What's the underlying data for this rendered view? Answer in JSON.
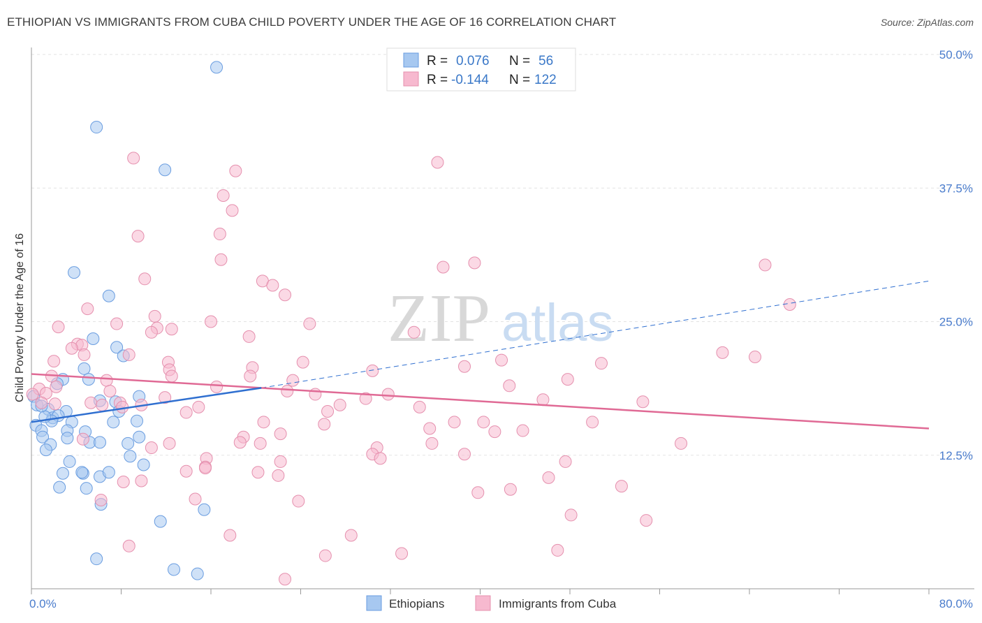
{
  "title": "ETHIOPIAN VS IMMIGRANTS FROM CUBA CHILD POVERTY UNDER THE AGE OF 16 CORRELATION CHART",
  "source": "Source: ZipAtlas.com",
  "watermark": {
    "zip": "ZIP",
    "atlas": "atlas"
  },
  "chart_data": {
    "type": "scatter",
    "xlabel": "",
    "ylabel": "Child Poverty Under the Age of 16",
    "xlim": [
      0,
      80
    ],
    "ylim": [
      0,
      50
    ],
    "x_tick_labels": [
      {
        "value": 0,
        "label": "0.0%"
      },
      {
        "value": 80,
        "label": "80.0%"
      }
    ],
    "y_tick_labels": [
      {
        "value": 12.5,
        "label": "12.5%"
      },
      {
        "value": 25,
        "label": "25.0%"
      },
      {
        "value": 37.5,
        "label": "37.5%"
      },
      {
        "value": 50,
        "label": "50.0%"
      }
    ],
    "legend_stats": [
      {
        "r_label": "R =",
        "r": "0.076",
        "n_label": "N =",
        "n": "56",
        "color": "#a7c8f0",
        "stroke": "#6a9de0"
      },
      {
        "r_label": "R =",
        "r": "-0.144",
        "n_label": "N =",
        "n": "122",
        "color": "#f7b9cf",
        "stroke": "#e590ae"
      }
    ],
    "series": [
      {
        "name": "Ethiopians",
        "color": "#a7c8f0",
        "stroke": "#6a9de0",
        "trend": {
          "x0": 0,
          "y0": 15.6,
          "x1": 20.5,
          "y1": 18.8,
          "dash_x1": 80,
          "dash_y1": 28.8,
          "color": "#2f6fd0"
        },
        "points": [
          [
            16.5,
            48.8
          ],
          [
            5.8,
            43.2
          ],
          [
            11.9,
            39.2
          ],
          [
            3.8,
            29.6
          ],
          [
            6.9,
            27.4
          ],
          [
            7.6,
            22.6
          ],
          [
            8.2,
            21.8
          ],
          [
            5.5,
            23.4
          ],
          [
            4.7,
            20.6
          ],
          [
            5.1,
            19.6
          ],
          [
            2.8,
            19.6
          ],
          [
            2.3,
            19.2
          ],
          [
            0.2,
            18.0
          ],
          [
            0.5,
            17.2
          ],
          [
            9.6,
            18.0
          ],
          [
            1.5,
            16.8
          ],
          [
            3.1,
            16.6
          ],
          [
            6.1,
            17.6
          ],
          [
            7.5,
            17.5
          ],
          [
            7.8,
            16.6
          ],
          [
            1.9,
            16.0
          ],
          [
            2.4,
            16.2
          ],
          [
            3.6,
            15.6
          ],
          [
            1.8,
            15.7
          ],
          [
            0.4,
            15.3
          ],
          [
            0.9,
            14.8
          ],
          [
            7.3,
            15.6
          ],
          [
            9.4,
            15.7
          ],
          [
            3.2,
            14.8
          ],
          [
            1.0,
            14.2
          ],
          [
            4.8,
            14.7
          ],
          [
            3.2,
            14.1
          ],
          [
            1.7,
            13.5
          ],
          [
            5.2,
            13.7
          ],
          [
            6.1,
            13.7
          ],
          [
            1.3,
            13.0
          ],
          [
            8.6,
            13.6
          ],
          [
            9.6,
            14.2
          ],
          [
            8.8,
            12.4
          ],
          [
            10.0,
            11.6
          ],
          [
            3.4,
            11.9
          ],
          [
            2.8,
            10.8
          ],
          [
            4.6,
            10.8
          ],
          [
            4.5,
            10.9
          ],
          [
            6.1,
            10.5
          ],
          [
            6.9,
            10.9
          ],
          [
            2.5,
            9.5
          ],
          [
            4.9,
            9.4
          ],
          [
            6.2,
            7.9
          ],
          [
            11.5,
            6.3
          ],
          [
            15.4,
            7.4
          ],
          [
            5.8,
            2.8
          ],
          [
            12.7,
            1.8
          ],
          [
            14.8,
            1.4
          ],
          [
            1.2,
            16.1
          ],
          [
            0.9,
            17.1
          ]
        ]
      },
      {
        "name": "Immigrants from Cuba",
        "color": "#f7b9cf",
        "stroke": "#e590ae",
        "trend": {
          "x0": 0,
          "y0": 20.1,
          "x1": 80,
          "y1": 15.0,
          "color": "#e06a95"
        },
        "points": [
          [
            9.1,
            40.3
          ],
          [
            18.2,
            39.1
          ],
          [
            36.2,
            39.9
          ],
          [
            17.1,
            36.8
          ],
          [
            17.9,
            35.4
          ],
          [
            9.5,
            33.0
          ],
          [
            16.8,
            33.2
          ],
          [
            16.9,
            30.8
          ],
          [
            36.7,
            30.1
          ],
          [
            39.5,
            30.5
          ],
          [
            65.4,
            30.3
          ],
          [
            10.1,
            29.0
          ],
          [
            20.6,
            28.8
          ],
          [
            21.5,
            28.4
          ],
          [
            22.6,
            27.5
          ],
          [
            67.6,
            26.6
          ],
          [
            5.0,
            26.2
          ],
          [
            11.0,
            25.5
          ],
          [
            16.0,
            25.0
          ],
          [
            2.4,
            24.5
          ],
          [
            7.6,
            24.8
          ],
          [
            24.8,
            24.8
          ],
          [
            11.2,
            24.4
          ],
          [
            12.5,
            24.3
          ],
          [
            10.7,
            24.0
          ],
          [
            19.4,
            23.6
          ],
          [
            34.1,
            24.0
          ],
          [
            4.1,
            22.9
          ],
          [
            4.5,
            22.8
          ],
          [
            3.6,
            22.5
          ],
          [
            4.7,
            21.9
          ],
          [
            8.7,
            21.9
          ],
          [
            19.7,
            20.7
          ],
          [
            19.5,
            19.9
          ],
          [
            12.2,
            21.2
          ],
          [
            12.3,
            20.5
          ],
          [
            2.0,
            21.3
          ],
          [
            24.2,
            21.2
          ],
          [
            38.6,
            20.8
          ],
          [
            41.9,
            21.4
          ],
          [
            50.8,
            21.1
          ],
          [
            61.6,
            22.1
          ],
          [
            64.5,
            21.7
          ],
          [
            30.4,
            20.4
          ],
          [
            1.8,
            19.9
          ],
          [
            6.7,
            19.5
          ],
          [
            2.2,
            18.9
          ],
          [
            0.7,
            18.7
          ],
          [
            16.5,
            18.9
          ],
          [
            23.3,
            19.5
          ],
          [
            12.5,
            19.9
          ],
          [
            47.8,
            19.6
          ],
          [
            42.6,
            19.0
          ],
          [
            0.1,
            18.2
          ],
          [
            1.3,
            18.3
          ],
          [
            7.0,
            18.5
          ],
          [
            11.9,
            17.9
          ],
          [
            22.8,
            18.5
          ],
          [
            25.3,
            18.2
          ],
          [
            31.8,
            18.2
          ],
          [
            0.9,
            17.4
          ],
          [
            2.1,
            17.3
          ],
          [
            5.3,
            17.4
          ],
          [
            6.3,
            17.2
          ],
          [
            7.9,
            17.4
          ],
          [
            8.1,
            17.0
          ],
          [
            9.8,
            17.2
          ],
          [
            14.9,
            17.0
          ],
          [
            27.5,
            17.2
          ],
          [
            29.8,
            17.8
          ],
          [
            34.6,
            17.0
          ],
          [
            45.6,
            17.7
          ],
          [
            54.5,
            17.5
          ],
          [
            13.8,
            16.5
          ],
          [
            26.4,
            16.6
          ],
          [
            20.7,
            15.6
          ],
          [
            26.1,
            15.4
          ],
          [
            37.7,
            15.6
          ],
          [
            40.3,
            15.6
          ],
          [
            50.0,
            15.6
          ],
          [
            35.5,
            15.0
          ],
          [
            41.3,
            14.7
          ],
          [
            43.8,
            14.8
          ],
          [
            22.2,
            14.5
          ],
          [
            18.9,
            14.2
          ],
          [
            18.6,
            13.7
          ],
          [
            20.4,
            13.6
          ],
          [
            30.8,
            13.2
          ],
          [
            35.7,
            13.6
          ],
          [
            12.3,
            13.6
          ],
          [
            10.7,
            13.2
          ],
          [
            30.4,
            12.6
          ],
          [
            31.1,
            12.2
          ],
          [
            38.6,
            12.6
          ],
          [
            57.9,
            13.6
          ],
          [
            15.6,
            12.2
          ],
          [
            15.5,
            11.4
          ],
          [
            13.8,
            11.0
          ],
          [
            20.2,
            10.9
          ],
          [
            22.2,
            11.9
          ],
          [
            47.6,
            11.9
          ],
          [
            22.0,
            10.6
          ],
          [
            8.2,
            10.0
          ],
          [
            46.1,
            10.4
          ],
          [
            52.6,
            9.6
          ],
          [
            39.8,
            9.0
          ],
          [
            42.7,
            9.3
          ],
          [
            14.6,
            8.4
          ],
          [
            6.2,
            8.3
          ],
          [
            48.1,
            6.9
          ],
          [
            54.8,
            6.4
          ],
          [
            17.7,
            5.0
          ],
          [
            28.5,
            5.0
          ],
          [
            8.7,
            4.0
          ],
          [
            26.2,
            3.1
          ],
          [
            33.0,
            3.3
          ],
          [
            46.9,
            3.6
          ],
          [
            22.6,
            0.9
          ],
          [
            9.8,
            10.1
          ],
          [
            15.5,
            11.3
          ],
          [
            23.8,
            8.2
          ],
          [
            4.6,
            14.0
          ]
        ]
      }
    ]
  }
}
